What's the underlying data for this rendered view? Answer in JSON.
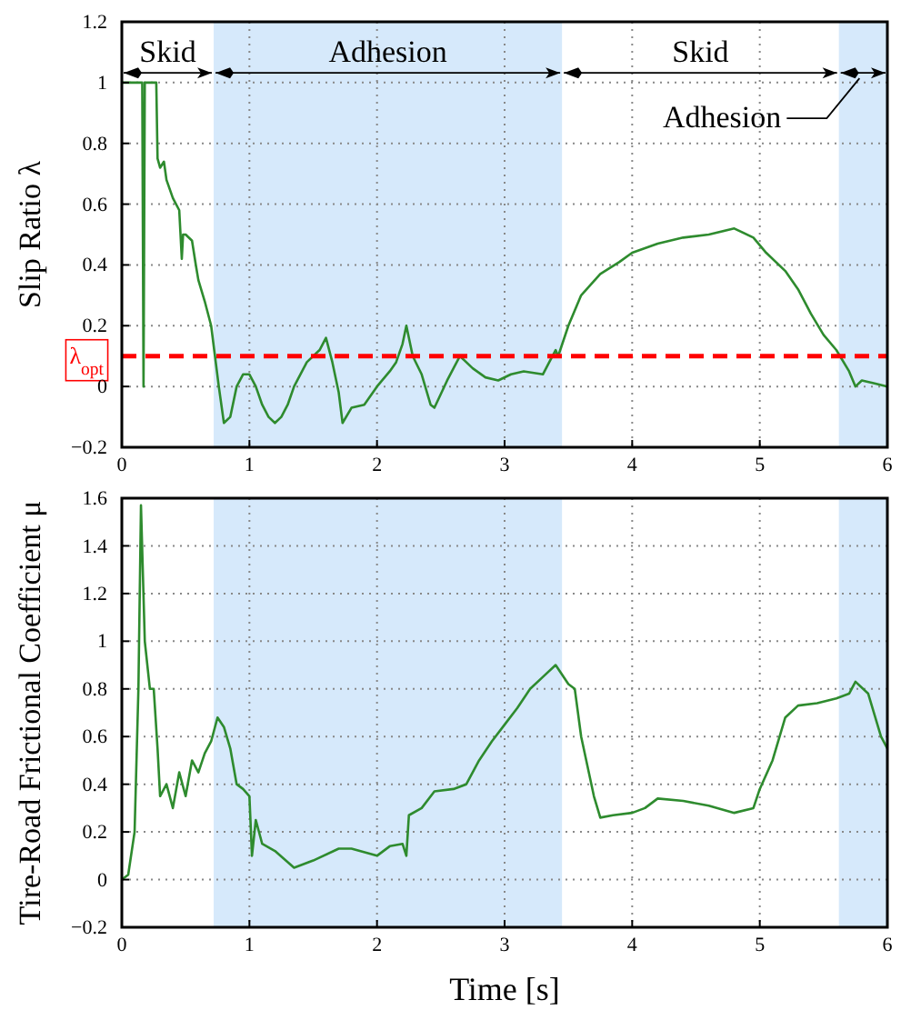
{
  "chart_data": [
    {
      "type": "line",
      "ylabel": "Slip Ratio λ",
      "xlim": [
        0,
        6
      ],
      "xticks": [
        0,
        1,
        2,
        3,
        4,
        5,
        6
      ],
      "ylim": [
        -0.2,
        1.2
      ],
      "yticks": [
        {
          "value": -0.2,
          "label": "−0.2"
        },
        0,
        0.2,
        0.4,
        0.6,
        0.8,
        1,
        1.2
      ],
      "grid": true,
      "series": [
        {
          "color": "#2e8b2e",
          "x": [
            0,
            0.15,
            0.16,
            0.17,
            0.18,
            0.27,
            0.28,
            0.3,
            0.33,
            0.35,
            0.4,
            0.45,
            0.47,
            0.48,
            0.5,
            0.55,
            0.58,
            0.6,
            0.65,
            0.7,
            0.73,
            0.76,
            0.8,
            0.85,
            0.9,
            0.95,
            1.0,
            1.05,
            1.1,
            1.15,
            1.2,
            1.25,
            1.3,
            1.35,
            1.45,
            1.55,
            1.6,
            1.65,
            1.7,
            1.73,
            1.8,
            1.9,
            2.0,
            2.1,
            2.15,
            2.2,
            2.23,
            2.28,
            2.35,
            2.42,
            2.45,
            2.55,
            2.65,
            2.75,
            2.85,
            2.95,
            3.05,
            3.15,
            3.3,
            3.35,
            3.4,
            3.42,
            3.5,
            3.6,
            3.75,
            3.9,
            4.0,
            4.2,
            4.4,
            4.6,
            4.8,
            4.95,
            5.05,
            5.2,
            5.3,
            5.4,
            5.5,
            5.6,
            5.7,
            5.75,
            5.8,
            5.9,
            6.0
          ],
          "values": [
            1,
            1,
            1,
            0,
            1,
            1,
            0.75,
            0.72,
            0.74,
            0.68,
            0.62,
            0.58,
            0.42,
            0.5,
            0.5,
            0.48,
            0.4,
            0.35,
            0.28,
            0.2,
            0.1,
            0,
            -0.12,
            -0.1,
            0,
            0.04,
            0.04,
            0,
            -0.06,
            -0.1,
            -0.12,
            -0.1,
            -0.06,
            0,
            0.08,
            0.12,
            0.16,
            0.08,
            -0.02,
            -0.12,
            -0.07,
            -0.06,
            0,
            0.05,
            0.08,
            0.14,
            0.2,
            0.1,
            0.04,
            -0.06,
            -0.07,
            0.02,
            0.1,
            0.06,
            0.03,
            0.02,
            0.04,
            0.05,
            0.04,
            0.08,
            0.12,
            0.1,
            0.2,
            0.3,
            0.37,
            0.41,
            0.44,
            0.47,
            0.49,
            0.5,
            0.52,
            0.49,
            0.44,
            0.38,
            0.32,
            0.24,
            0.17,
            0.12,
            0.05,
            0,
            0.02,
            0.01,
            0
          ]
        }
      ],
      "ref_lines": [
        {
          "axis": "y",
          "value": 0.1,
          "label": "λ$_{opt}$",
          "color": "#ff0000",
          "line_style": "dashed"
        }
      ],
      "bands": [
        {
          "axis": "x",
          "from": 0.72,
          "to": 3.45,
          "color": "#d6e9fb"
        },
        {
          "axis": "x",
          "from": 5.62,
          "to": 6,
          "color": "#d6e9fb"
        }
      ],
      "annotations": [
        "Skid",
        "Adhesion",
        "Skid",
        "Adhesion"
      ]
    },
    {
      "type": "line",
      "xlabel": "Time [s]",
      "ylabel": "Tire-Road Frictional Coefficient μ",
      "xlim": [
        0,
        6
      ],
      "xticks": [
        0,
        1,
        2,
        3,
        4,
        5,
        6
      ],
      "ylim": [
        -0.2,
        1.6
      ],
      "yticks": [
        {
          "value": -0.2,
          "label": "−0.2"
        },
        0,
        0.2,
        0.4,
        0.6,
        0.8,
        1,
        1.2,
        1.4,
        1.6
      ],
      "grid": true,
      "series": [
        {
          "color": "#2e8b2e",
          "x": [
            0,
            0.05,
            0.1,
            0.13,
            0.15,
            0.18,
            0.22,
            0.25,
            0.28,
            0.3,
            0.35,
            0.4,
            0.45,
            0.5,
            0.55,
            0.6,
            0.65,
            0.7,
            0.75,
            0.8,
            0.85,
            0.9,
            0.95,
            1.0,
            1.02,
            1.05,
            1.1,
            1.2,
            1.35,
            1.5,
            1.7,
            1.8,
            2.0,
            2.1,
            2.2,
            2.23,
            2.25,
            2.35,
            2.45,
            2.6,
            2.7,
            2.8,
            2.9,
            3.0,
            3.1,
            3.2,
            3.3,
            3.4,
            3.5,
            3.55,
            3.6,
            3.7,
            3.75,
            3.85,
            4.0,
            4.1,
            4.2,
            4.4,
            4.6,
            4.8,
            4.95,
            5.0,
            5.1,
            5.2,
            5.3,
            5.45,
            5.6,
            5.7,
            5.75,
            5.85,
            5.95,
            6.0
          ],
          "values": [
            0,
            0.02,
            0.2,
            0.8,
            1.57,
            1.0,
            0.8,
            0.8,
            0.55,
            0.35,
            0.4,
            0.3,
            0.45,
            0.35,
            0.5,
            0.45,
            0.53,
            0.58,
            0.68,
            0.64,
            0.55,
            0.4,
            0.38,
            0.35,
            0.1,
            0.25,
            0.15,
            0.12,
            0.05,
            0.08,
            0.13,
            0.13,
            0.1,
            0.14,
            0.15,
            0.1,
            0.27,
            0.3,
            0.37,
            0.38,
            0.4,
            0.5,
            0.58,
            0.65,
            0.72,
            0.8,
            0.85,
            0.9,
            0.82,
            0.8,
            0.6,
            0.35,
            0.26,
            0.27,
            0.28,
            0.3,
            0.34,
            0.33,
            0.31,
            0.28,
            0.3,
            0.38,
            0.5,
            0.68,
            0.73,
            0.74,
            0.76,
            0.78,
            0.83,
            0.78,
            0.6,
            0.55
          ]
        }
      ],
      "bands": [
        {
          "axis": "x",
          "from": 0.72,
          "to": 3.45,
          "color": "#d6e9fb"
        },
        {
          "axis": "x",
          "from": 5.62,
          "to": 6,
          "color": "#d6e9fb"
        }
      ]
    }
  ]
}
